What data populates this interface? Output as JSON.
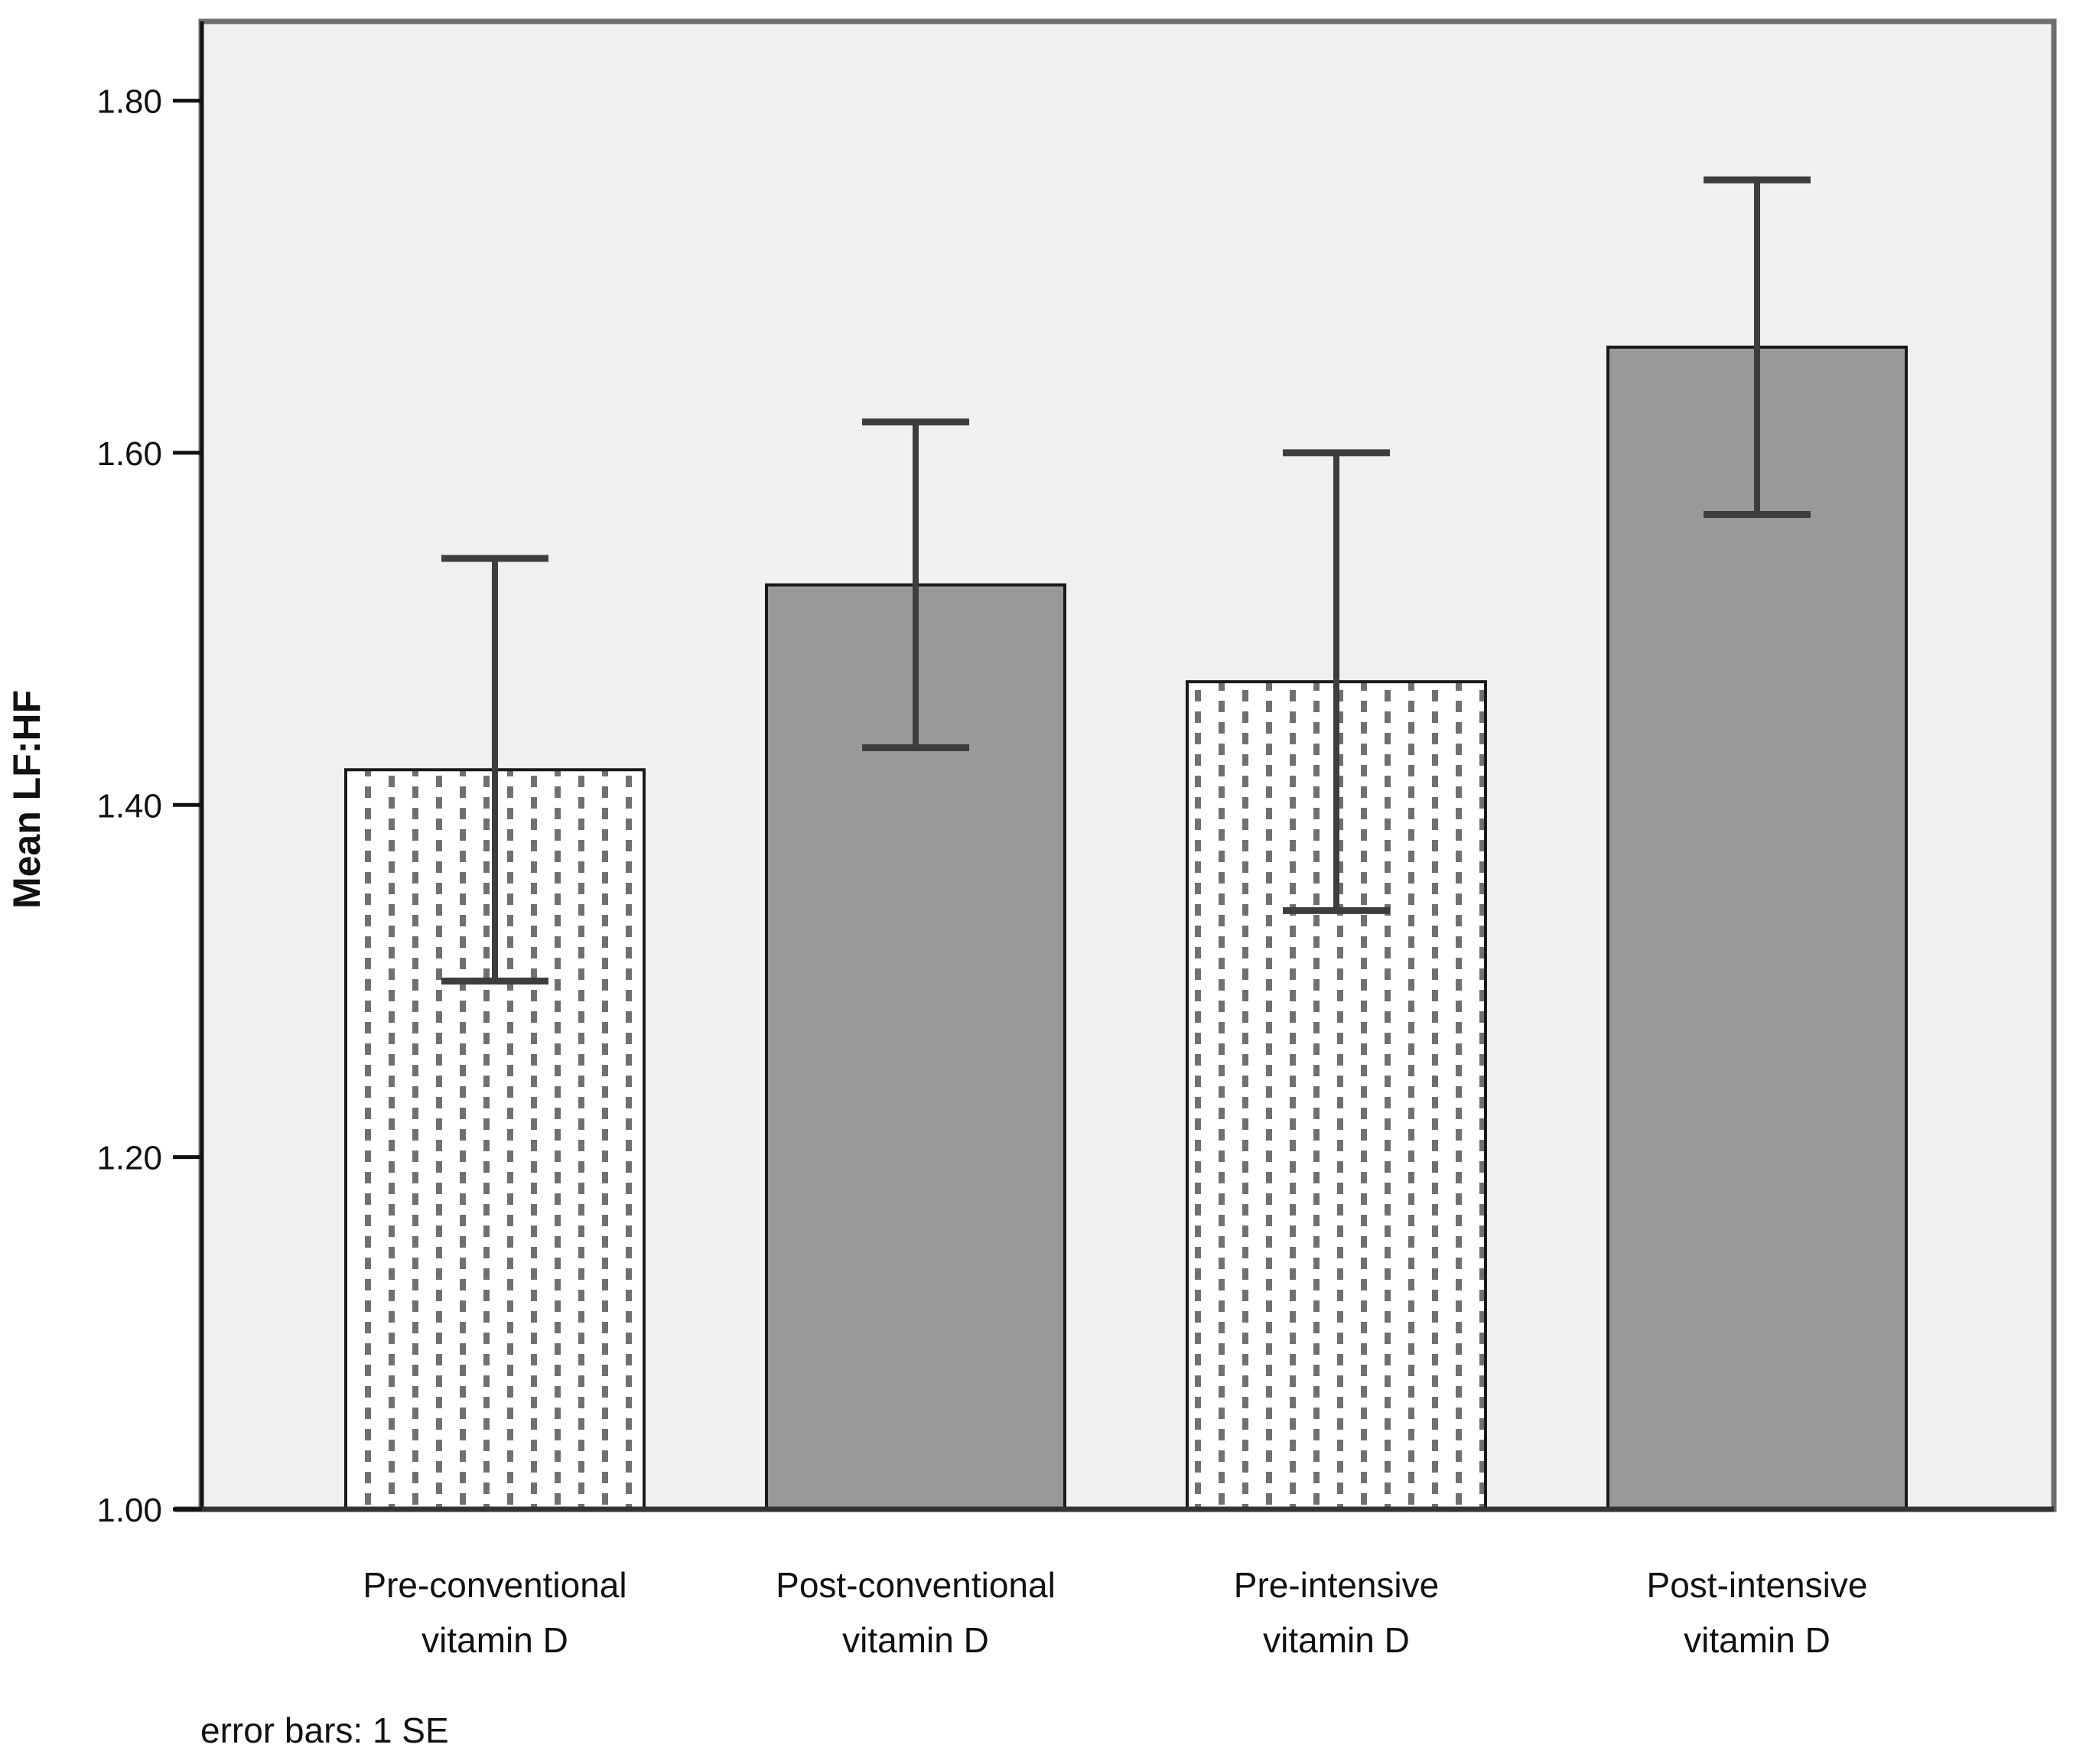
{
  "figure": {
    "ylabel": "Mean LF:HF",
    "footnote": "error bars: 1 SE"
  },
  "chart_data": {
    "type": "bar",
    "title": "",
    "xlabel": "",
    "ylabel": "Mean LF:HF",
    "categories": [
      {
        "label": "Pre-conventional vitamin D",
        "line1": "Pre-conventional",
        "line2": "vitamin D"
      },
      {
        "label": "Post-conventional vitamin D",
        "line1": "Post-conventional",
        "line2": "vitamin D"
      },
      {
        "label": "Pre-intensive vitamin D",
        "line1": "Pre-intensive",
        "line2": "vitamin D"
      },
      {
        "label": "Post-intensive vitamin D",
        "line1": "Post-intensive",
        "line2": "vitamin D"
      }
    ],
    "series": [
      {
        "name": "Mean LF:HF",
        "values": [
          1.42,
          1.525,
          1.47,
          1.66
        ],
        "standard_errors": [
          0.12,
          0.0925,
          0.13,
          0.095
        ]
      }
    ],
    "error_bar_note": "error bars: 1 SE",
    "ylim": [
      1.0,
      1.845
    ],
    "yticks": [
      1.0,
      1.2,
      1.4,
      1.6,
      1.8
    ],
    "ytick_labels": [
      "1.00",
      "1.20",
      "1.40",
      "1.60",
      "1.80"
    ],
    "grid": false,
    "legend": "none",
    "bar_styles": [
      "pattern-dotted",
      "solid",
      "pattern-dotted",
      "solid"
    ],
    "colors": {
      "plot_background": "#f0f0ef",
      "outer_background": "#ffffff",
      "solid_bar_fill": "#999999",
      "pattern_bar_background": "#ffffff",
      "pattern_dash": "#707070",
      "bar_border": "#1a1a1a",
      "error_bar": "#3d3d3d",
      "axis_line": "#111111",
      "plot_border": "#6e6e6e"
    }
  }
}
